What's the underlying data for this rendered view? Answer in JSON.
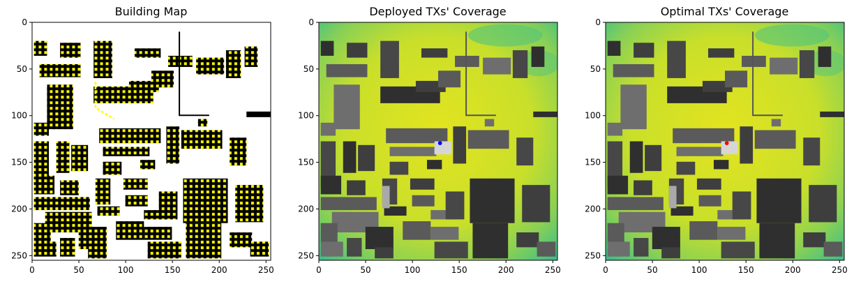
{
  "chart_data": [
    {
      "type": "heatmap",
      "title": "Building Map",
      "xlim": [
        0,
        255
      ],
      "ylim": [
        255,
        0
      ],
      "xticks": [
        0,
        50,
        100,
        150,
        200,
        250
      ],
      "yticks": [
        0,
        50,
        100,
        150,
        200,
        250
      ],
      "xtick_labels": [
        "0",
        "50",
        "100",
        "150",
        "200",
        "250"
      ],
      "ytick_labels": [
        "0",
        "50",
        "100",
        "150",
        "200",
        "250"
      ],
      "colors": {
        "background": "#ffffff",
        "building": "#000000",
        "candidate_marker": "#ffff00"
      },
      "transmitter": null
    },
    {
      "type": "heatmap",
      "title": "Deployed TXs' Coverage",
      "xlim": [
        0,
        255
      ],
      "ylim": [
        255,
        0
      ],
      "xticks": [
        0,
        50,
        100,
        150,
        200,
        250
      ],
      "yticks": [
        0,
        50,
        100,
        150,
        200,
        250
      ],
      "xtick_labels": [
        "0",
        "50",
        "100",
        "150",
        "200",
        "250"
      ],
      "ytick_labels": [
        "0",
        "50",
        "100",
        "150",
        "200",
        "250"
      ],
      "colors": {
        "coverage_high": "#e3e41f",
        "coverage_low": "#3fbf86",
        "building": "#3a3a3a"
      },
      "transmitter": {
        "x": 130,
        "y": 130,
        "color": "#0000ff"
      }
    },
    {
      "type": "heatmap",
      "title": "Optimal TXs' Coverage",
      "xlim": [
        0,
        255
      ],
      "ylim": [
        255,
        0
      ],
      "xticks": [
        0,
        50,
        100,
        150,
        200,
        250
      ],
      "yticks": [
        0,
        50,
        100,
        150,
        200,
        250
      ],
      "xtick_labels": [
        "0",
        "50",
        "100",
        "150",
        "200",
        "250"
      ],
      "ytick_labels": [
        "0",
        "50",
        "100",
        "150",
        "200",
        "250"
      ],
      "colors": {
        "coverage_high": "#e3e41f",
        "coverage_low": "#3fbf86",
        "building": "#3a3a3a"
      },
      "transmitter": {
        "x": 130,
        "y": 130,
        "color": "#ff0000"
      }
    }
  ]
}
